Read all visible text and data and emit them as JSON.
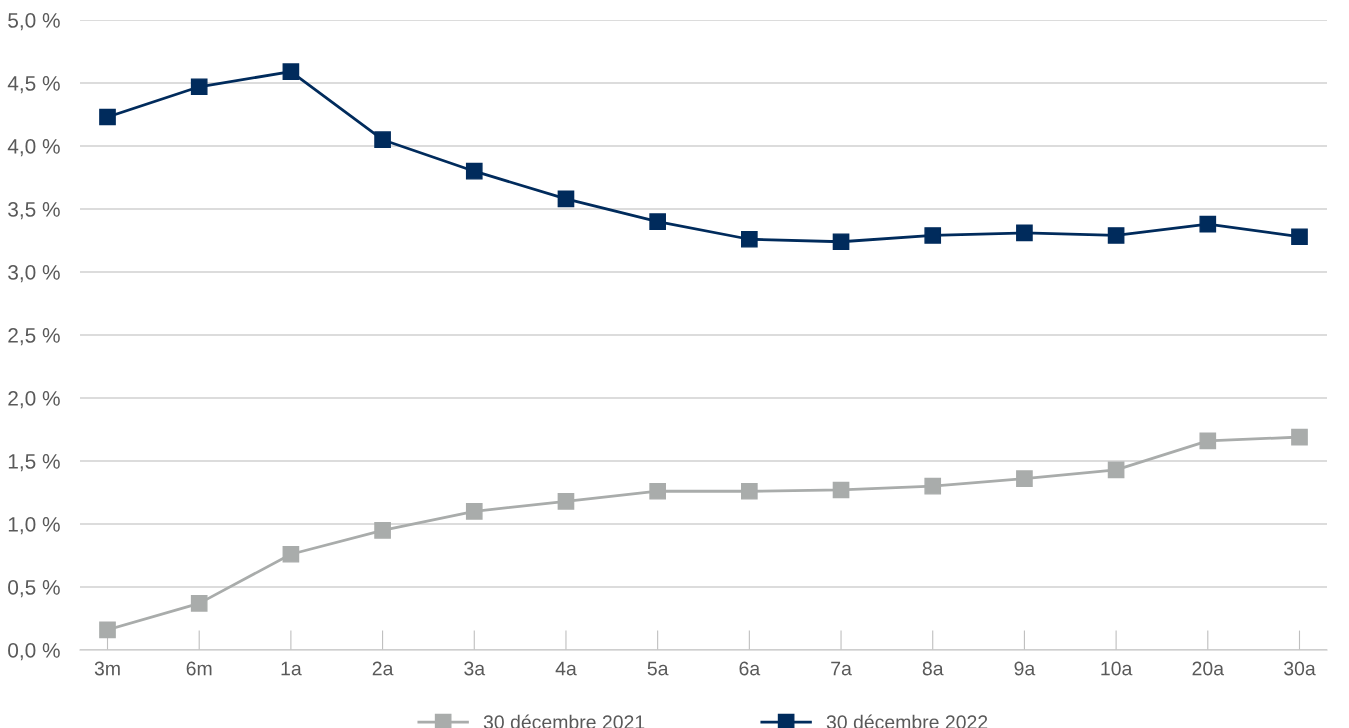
{
  "chart_data": {
    "type": "line",
    "categories": [
      "3m",
      "6m",
      "1a",
      "2a",
      "3a",
      "4a",
      "5a",
      "6a",
      "7a",
      "8a",
      "9a",
      "10a",
      "20a",
      "30a"
    ],
    "series": [
      {
        "name": "30 décembre 2021",
        "color": "#a9acab",
        "values": [
          0.16,
          0.37,
          0.76,
          0.95,
          1.1,
          1.18,
          1.26,
          1.26,
          1.27,
          1.3,
          1.36,
          1.43,
          1.66,
          1.69
        ]
      },
      {
        "name": "30 décembre 2022",
        "color": "#002b5c",
        "values": [
          4.23,
          4.47,
          4.59,
          4.05,
          3.8,
          3.58,
          3.4,
          3.26,
          3.24,
          3.29,
          3.31,
          3.29,
          3.38,
          3.28
        ]
      }
    ],
    "ylim": [
      0,
      5
    ],
    "yticks": [
      {
        "value": 0,
        "label": "0,0 %"
      },
      {
        "value": 0.5,
        "label": "0,5 %"
      },
      {
        "value": 1,
        "label": "1,0 %"
      },
      {
        "value": 1.5,
        "label": "1,5 %"
      },
      {
        "value": 2,
        "label": "2,0 %"
      },
      {
        "value": 2.5,
        "label": "2,5 %"
      },
      {
        "value": 3,
        "label": "3,0 %"
      },
      {
        "value": 3.5,
        "label": "3,5 %"
      },
      {
        "value": 4,
        "label": "4,0 %"
      },
      {
        "value": 4.5,
        "label": "4,5 %"
      },
      {
        "value": 5,
        "label": "5,0 %"
      }
    ],
    "grid": "y",
    "legend": "bottom",
    "marker": "square",
    "line_style": "solid"
  }
}
